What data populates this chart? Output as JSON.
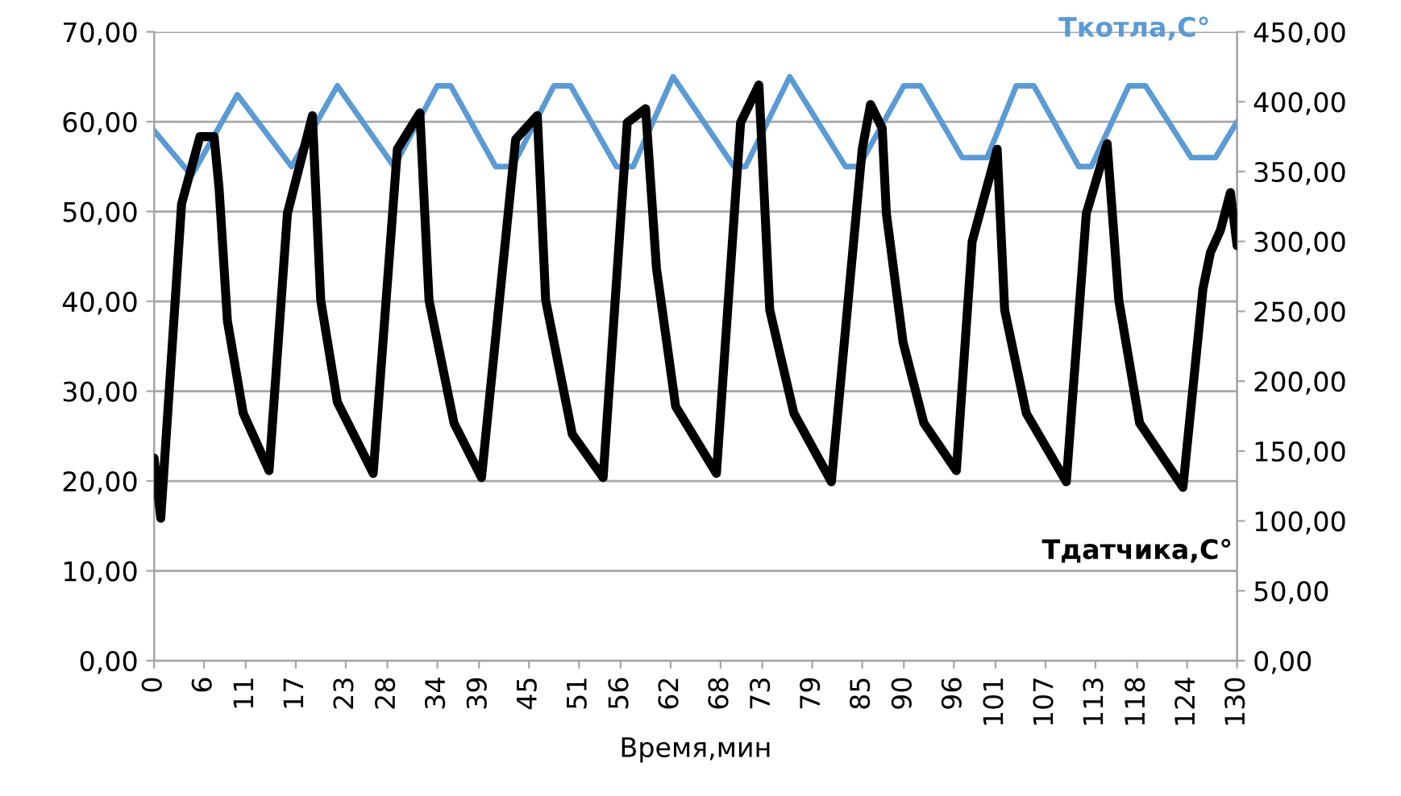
{
  "chart_data": {
    "type": "line",
    "xlabel": "Время,мин",
    "xlim": [
      0,
      130
    ],
    "xticks": [
      0,
      6,
      11,
      17,
      23,
      28,
      34,
      39,
      45,
      51,
      56,
      62,
      68,
      73,
      79,
      85,
      90,
      96,
      101,
      107,
      113,
      118,
      124,
      130
    ],
    "ylim": [
      0,
      70
    ],
    "yticks": [
      {
        "value": 0,
        "label": "0,00"
      },
      {
        "value": 10,
        "label": "10,00"
      },
      {
        "value": 20,
        "label": "20,00"
      },
      {
        "value": 30,
        "label": "30,00"
      },
      {
        "value": 40,
        "label": "40,00"
      },
      {
        "value": 50,
        "label": "50,00"
      },
      {
        "value": 60,
        "label": "60,00"
      },
      {
        "value": 70,
        "label": "70,00"
      }
    ],
    "y2lim": [
      0,
      450
    ],
    "y2ticks": [
      {
        "value": 0,
        "label": "0,00"
      },
      {
        "value": 50,
        "label": "50,00"
      },
      {
        "value": 100,
        "label": "100,00"
      },
      {
        "value": 150,
        "label": "150,00"
      },
      {
        "value": 200,
        "label": "200,00"
      },
      {
        "value": 250,
        "label": "250,00"
      },
      {
        "value": 300,
        "label": "300,00"
      },
      {
        "value": 350,
        "label": "350,00"
      },
      {
        "value": 400,
        "label": "400,00"
      },
      {
        "value": 450,
        "label": "450,00"
      }
    ],
    "grid": "y",
    "legend": false,
    "marker": "none",
    "line_style": "solid",
    "series": [
      {
        "name": "Ткотла,С°",
        "color": "#5b9bd5",
        "x": [
          0,
          4.5,
          10,
          16.5,
          22,
          28.8,
          34,
          35.6,
          41,
          43,
          48,
          50,
          55.5,
          57.5,
          62.3,
          69.6,
          71,
          76.3,
          83,
          84.6,
          90,
          92,
          97,
          100,
          103.5,
          105.6,
          111,
          112.5,
          117,
          119,
          124.5,
          127.4,
          130
        ],
        "values": [
          59,
          54,
          63,
          55,
          64,
          55,
          64,
          64,
          55,
          55,
          64,
          64,
          55,
          55,
          65,
          55,
          55,
          65,
          55,
          55,
          64,
          64,
          56,
          56,
          64,
          64,
          55,
          55,
          64,
          64,
          56,
          56,
          60
        ]
      },
      {
        "name": "Тдатчика,С°",
        "color": "#000000",
        "axis": "y2",
        "x": [
          0,
          0.8,
          3.3,
          5.5,
          7.2,
          7.8,
          8.8,
          10.7,
          13.8,
          16,
          19,
          20,
          22,
          26.3,
          29.2,
          31.9,
          33,
          36,
          39.3,
          43.4,
          46,
          47,
          50.2,
          53.9,
          56.8,
          59,
          60.3,
          62.6,
          67.5,
          70.4,
          72.6,
          73.9,
          76.8,
          81.3,
          85,
          86,
          87.4,
          87.9,
          89.9,
          92.4,
          96.3,
          98.2,
          101.2,
          102.1,
          104.7,
          109.5,
          111.9,
          114.4,
          115.8,
          118.3,
          123.5,
          125.9,
          126.8,
          128,
          129.2,
          130
        ],
        "values": [
          145,
          102,
          327,
          375,
          375,
          338,
          243,
          177,
          136,
          320,
          390,
          258,
          185,
          134,
          366,
          392,
          258,
          170,
          131,
          373,
          390,
          258,
          162,
          131,
          385,
          395,
          281,
          182,
          134,
          385,
          412,
          251,
          177,
          128,
          366,
          398,
          381,
          320,
          228,
          170,
          136,
          300,
          366,
          251,
          177,
          128,
          320,
          370,
          258,
          170,
          124,
          266,
          292,
          308,
          335,
          297
        ]
      }
    ]
  }
}
